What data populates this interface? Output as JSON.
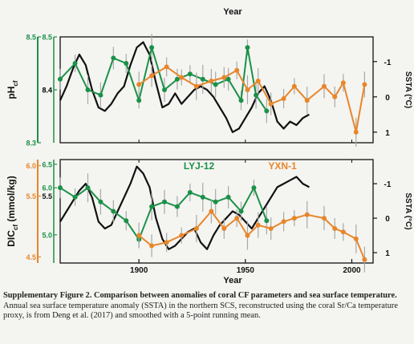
{
  "chart_data": [
    {
      "type": "line",
      "panel": "top",
      "top_xlabel": "Year",
      "ylabel_left": "pHcf",
      "ylabel_left_main": "pH",
      "ylabel_left_sub": "cf",
      "ylabel_right": "SSTA (°C)",
      "xlim": [
        1863,
        2010
      ],
      "left_axis_outer": {
        "ylim": [
          8.3,
          8.5
        ],
        "ticks": [
          "8.3",
          "8.5"
        ],
        "color": "#1b9148"
      },
      "left_axis_inner": {
        "ylim": [
          8.3,
          8.5
        ],
        "ticks": [
          "8.4",
          "8.5"
        ],
        "color": "#1b9148"
      },
      "left_axis_black": {
        "ylim": [
          8.3,
          8.5
        ],
        "ticks": [
          "8.4"
        ],
        "color": "#111111"
      },
      "right_axis": {
        "ylim": [
          1.3,
          -1.7
        ],
        "ticks": [
          "-1",
          "0",
          "1"
        ],
        "inverted": true
      },
      "series": [
        {
          "color": "#111111",
          "axis": "right",
          "x": [
            1863,
            1866,
            1869,
            1872,
            1875,
            1878,
            1881,
            1884,
            1887,
            1890,
            1893,
            1896,
            1899,
            1902,
            1905,
            1908,
            1911,
            1914,
            1917,
            1920,
            1923,
            1926,
            1929,
            1932,
            1935,
            1938,
            1941,
            1944,
            1947,
            1950,
            1953,
            1956,
            1959,
            1962,
            1965,
            1968,
            1971,
            1974,
            1977,
            1980
          ],
          "y": [
            0.1,
            -0.3,
            -0.8,
            -1.2,
            -0.9,
            -0.2,
            0.3,
            0.4,
            0.2,
            -0.1,
            -0.3,
            -0.9,
            -1.4,
            -1.55,
            -1.2,
            -0.4,
            0.3,
            0.2,
            -0.1,
            0.2,
            0.0,
            -0.2,
            -0.3,
            -0.2,
            0.0,
            0.3,
            0.6,
            1.0,
            0.9,
            0.6,
            0.3,
            -0.1,
            -0.3,
            0.1,
            0.7,
            0.9,
            0.7,
            0.8,
            0.6,
            0.5
          ]
        },
        {
          "color": "#1b9148",
          "axis": "left",
          "x": [
            1863,
            1870,
            1876,
            1882,
            1888,
            1894,
            1900,
            1906,
            1912,
            1918,
            1924,
            1930,
            1936,
            1942,
            1948,
            1951,
            1955,
            1960
          ],
          "y": [
            8.42,
            8.45,
            8.4,
            8.39,
            8.46,
            8.45,
            8.38,
            8.48,
            8.4,
            8.42,
            8.43,
            8.42,
            8.41,
            8.42,
            8.38,
            8.48,
            8.39,
            8.36
          ]
        },
        {
          "color": "#e8862a",
          "axis": "right",
          "x": [
            1900,
            1906,
            1913,
            1920,
            1927,
            1934,
            1940,
            1946,
            1951,
            1956,
            1962,
            1968,
            1973,
            1979,
            1987,
            1992,
            1996,
            2002,
            2006
          ],
          "y": [
            -0.35,
            -0.6,
            -0.85,
            -0.55,
            -0.3,
            -0.45,
            -0.55,
            -0.75,
            -0.2,
            -0.45,
            0.2,
            0.05,
            -0.3,
            0.1,
            -0.3,
            0.0,
            -0.4,
            1.0,
            -0.35
          ]
        }
      ]
    },
    {
      "type": "line",
      "panel": "bottom",
      "xlabel": "Year",
      "ylabel_left": "DICcf (mmol/kg)",
      "ylabel_left_main": "DIC",
      "ylabel_left_sub": "cf",
      "ylabel_left_unit": " (mmol/kg)",
      "ylabel_right": "SSTA (°C)",
      "xlim": [
        1863,
        2010
      ],
      "xticks": [
        1900,
        1950,
        2000
      ],
      "left_axis_outer": {
        "ylim": [
          4.4,
          6.1
        ],
        "ticks": [
          "4.5",
          "5.5",
          "6.0"
        ],
        "color": "#e8862a"
      },
      "left_axis_inner": {
        "ylim": [
          4.4,
          6.6
        ],
        "ticks": [
          "5.0",
          "6.0",
          "6.5"
        ],
        "color": "#1b9148"
      },
      "left_axis_black": {
        "ylim": [
          4.4,
          6.1
        ],
        "ticks": [
          "5.5"
        ],
        "color": "#111111"
      },
      "right_axis": {
        "ylim": [
          1.3,
          -1.7
        ],
        "ticks": [
          "1",
          "0",
          "-1"
        ],
        "inverted": true
      },
      "annotations": [
        {
          "text": "LYJ-12",
          "color": "#1b9148"
        },
        {
          "text": "YXN-1",
          "color": "#e8862a"
        }
      ],
      "series": [
        {
          "color": "#111111",
          "axis": "right",
          "x": [
            1863,
            1866,
            1869,
            1872,
            1875,
            1878,
            1881,
            1884,
            1887,
            1890,
            1893,
            1896,
            1899,
            1902,
            1905,
            1908,
            1911,
            1914,
            1917,
            1920,
            1923,
            1926,
            1929,
            1932,
            1935,
            1938,
            1941,
            1944,
            1947,
            1950,
            1953,
            1956,
            1959,
            1962,
            1965,
            1968,
            1971,
            1974,
            1977,
            1980
          ],
          "y": [
            0.1,
            -0.2,
            -0.5,
            -0.8,
            -1.0,
            -0.6,
            0.1,
            0.3,
            0.2,
            -0.2,
            -0.6,
            -1.0,
            -1.5,
            -1.3,
            -0.9,
            0.0,
            0.6,
            0.9,
            0.8,
            0.6,
            0.4,
            0.3,
            0.7,
            0.9,
            0.5,
            0.2,
            0.0,
            -0.2,
            -0.1,
            0.1,
            0.3,
            0.0,
            -0.3,
            -0.6,
            -0.9,
            -1.0,
            -1.1,
            -1.2,
            -1.0,
            -0.9
          ]
        },
        {
          "color": "#1b9148",
          "axis": "left_inner",
          "x": [
            1863,
            1870,
            1876,
            1882,
            1888,
            1894,
            1900,
            1906,
            1912,
            1918,
            1924,
            1930,
            1936,
            1942,
            1948,
            1954,
            1960
          ],
          "y": [
            6.0,
            5.8,
            6.0,
            5.7,
            5.5,
            5.3,
            4.9,
            5.6,
            5.7,
            5.6,
            5.9,
            5.8,
            5.7,
            5.8,
            5.5,
            6.0,
            5.3
          ]
        },
        {
          "color": "#e8862a",
          "axis": "right",
          "x": [
            1900,
            1906,
            1913,
            1920,
            1927,
            1934,
            1940,
            1946,
            1951,
            1956,
            1962,
            1968,
            1973,
            1979,
            1987,
            1992,
            1996,
            2002,
            2006
          ],
          "y": [
            0.5,
            0.8,
            0.7,
            0.5,
            0.3,
            -0.2,
            0.3,
            0.0,
            0.5,
            0.2,
            0.3,
            0.1,
            0.0,
            -0.1,
            0.0,
            0.3,
            0.4,
            0.6,
            1.2
          ]
        }
      ]
    }
  ],
  "caption": {
    "title": "Supplementary Figure 2. Comparison between anomalies of coral CF parameters and sea surface temperature.",
    "body": "Annual sea surface temperature anomaly (SSTA) in the northern SCS, reconstructed using the coral Sr/Ca temperature proxy, is from Deng et al. (2017) and smoothed with a 5-point running mean."
  }
}
